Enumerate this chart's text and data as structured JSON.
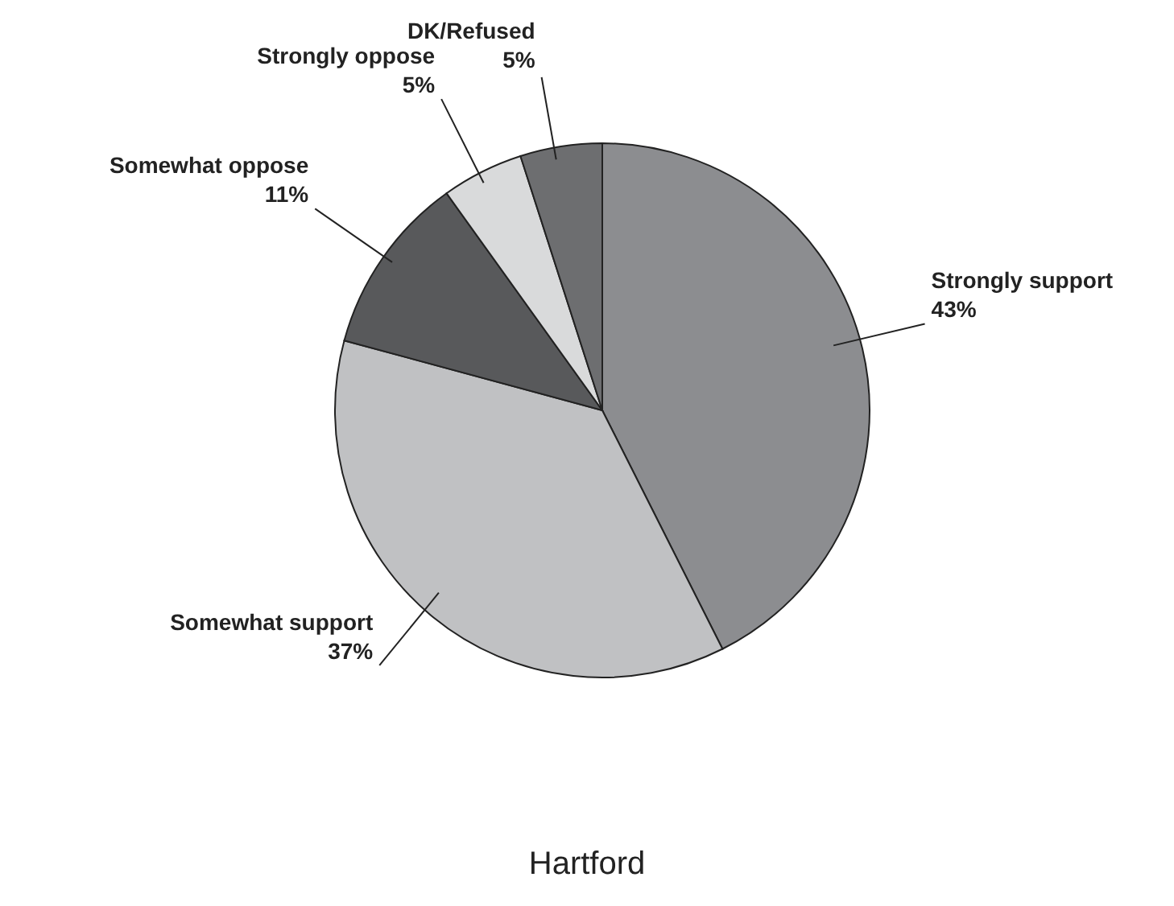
{
  "chart_data": {
    "type": "pie",
    "title": "Hartford",
    "categories": [
      "Strongly support",
      "Somewhat support",
      "Somewhat oppose",
      "Strongly oppose",
      "DK/Refused"
    ],
    "values": [
      43,
      37,
      11,
      5,
      5
    ],
    "value_labels": [
      "43%",
      "37%",
      "11%",
      "5%",
      "5%"
    ],
    "colors": [
      "#8c8d90",
      "#c0c1c3",
      "#58595b",
      "#d9dadb",
      "#6d6e70"
    ]
  }
}
